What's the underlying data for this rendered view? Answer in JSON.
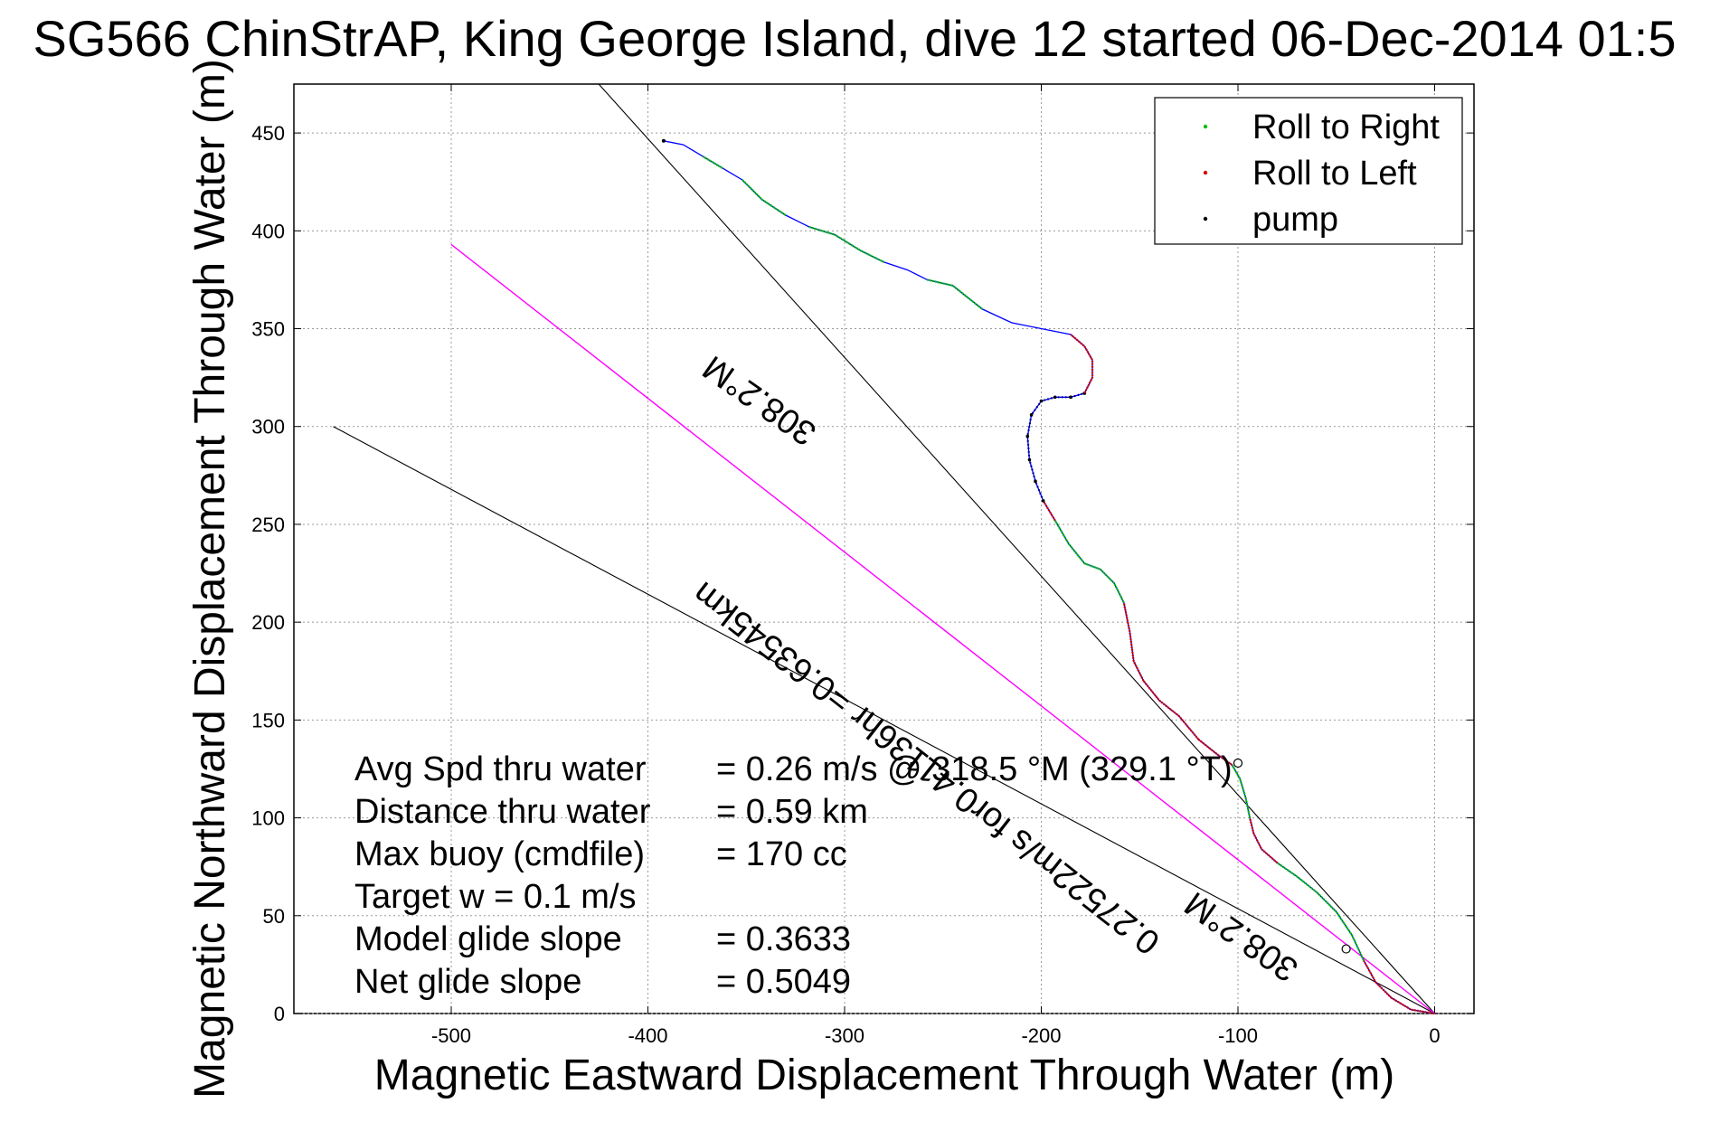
{
  "chart_data": {
    "type": "line",
    "title": "SG566 ChinStrAP, King George Island, dive 12 started 06-Dec-2014 01:5",
    "xlabel": "Magnetic Eastward Displacement Through Water (m)",
    "ylabel": "Magnetic Northward Displacement Through Water (m)",
    "xlim": [
      -580,
      20
    ],
    "ylim": [
      0,
      475
    ],
    "xticks": [
      -500,
      -400,
      -300,
      -200,
      -100,
      0
    ],
    "yticks": [
      0,
      50,
      100,
      150,
      200,
      250,
      300,
      350,
      400,
      450
    ],
    "grid": true,
    "legend_position": "top-right",
    "legend": [
      {
        "label": "Roll to Right",
        "color": "#00c000",
        "marker": "dot"
      },
      {
        "label": "Roll to Left",
        "color": "#d00000",
        "marker": "dot"
      },
      {
        "label": "pump",
        "color": "#000000",
        "marker": "dot"
      }
    ],
    "track": {
      "color": "#0000ff",
      "points": [
        [
          0,
          0
        ],
        [
          -12,
          2
        ],
        [
          -22,
          8
        ],
        [
          -30,
          16
        ],
        [
          -36,
          27
        ],
        [
          -42,
          40
        ],
        [
          -50,
          52
        ],
        [
          -60,
          62
        ],
        [
          -70,
          70
        ],
        [
          -80,
          77
        ],
        [
          -88,
          84
        ],
        [
          -92,
          92
        ],
        [
          -94,
          100
        ],
        [
          -96,
          110
        ],
        [
          -99,
          120
        ],
        [
          -103,
          127
        ],
        [
          -110,
          132
        ],
        [
          -120,
          140
        ],
        [
          -130,
          152
        ],
        [
          -140,
          160
        ],
        [
          -148,
          170
        ],
        [
          -153,
          180
        ],
        [
          -155,
          195
        ],
        [
          -158,
          210
        ],
        [
          -163,
          220
        ],
        [
          -170,
          227
        ],
        [
          -178,
          230
        ],
        [
          -186,
          240
        ],
        [
          -193,
          252
        ],
        [
          -199,
          262
        ],
        [
          -203,
          272
        ],
        [
          -206,
          283
        ],
        [
          -207,
          295
        ],
        [
          -205,
          306
        ],
        [
          -200,
          313
        ],
        [
          -193,
          315
        ],
        [
          -185,
          315
        ],
        [
          -178,
          317
        ],
        [
          -174,
          325
        ],
        [
          -174,
          334
        ],
        [
          -178,
          341
        ],
        [
          -185,
          347
        ],
        [
          -200,
          350
        ],
        [
          -215,
          353
        ],
        [
          -230,
          360
        ],
        [
          -245,
          372
        ],
        [
          -258,
          375
        ],
        [
          -268,
          380
        ],
        [
          -280,
          384
        ],
        [
          -292,
          390
        ],
        [
          -305,
          398
        ],
        [
          -318,
          402
        ],
        [
          -330,
          408
        ],
        [
          -342,
          416
        ],
        [
          -352,
          426
        ],
        [
          -362,
          432
        ],
        [
          -372,
          438
        ],
        [
          -382,
          444
        ],
        [
          -392,
          446
        ]
      ],
      "segments": [
        {
          "kind": "left",
          "from": 0,
          "to": 4
        },
        {
          "kind": "right",
          "from": 4,
          "to": 9
        },
        {
          "kind": "left",
          "from": 9,
          "to": 12
        },
        {
          "kind": "right",
          "from": 12,
          "to": 15
        },
        {
          "kind": "left",
          "from": 15,
          "to": 17
        },
        {
          "kind": "left",
          "from": 17,
          "to": 20
        },
        {
          "kind": "left",
          "from": 20,
          "to": 23
        },
        {
          "kind": "right",
          "from": 23,
          "to": 28
        },
        {
          "kind": "left",
          "from": 28,
          "to": 29
        },
        {
          "kind": "pump",
          "from": 29,
          "to": 36
        },
        {
          "kind": "pump",
          "from": 36,
          "to": 37
        },
        {
          "kind": "left",
          "from": 37,
          "to": 41
        },
        {
          "kind": "right",
          "from": 44,
          "to": 46
        },
        {
          "kind": "right",
          "from": 48,
          "to": 51
        },
        {
          "kind": "right",
          "from": 52,
          "to": 54
        },
        {
          "kind": "right",
          "from": 55,
          "to": 56
        }
      ]
    },
    "lines": [
      {
        "name": "envelope-upper",
        "color": "#000000",
        "points": [
          [
            0,
            0
          ],
          [
            -425,
            475
          ]
        ]
      },
      {
        "name": "envelope-lower",
        "color": "#000000",
        "points": [
          [
            0,
            0
          ],
          [
            -560,
            300
          ]
        ]
      },
      {
        "name": "heading-line",
        "color": "#ff00ff",
        "points": [
          [
            0,
            0
          ],
          [
            -500,
            393
          ]
        ]
      }
    ],
    "annotations": [
      {
        "text": "308.2°M",
        "x": -340,
        "y": 318,
        "rotate": 215
      },
      {
        "text": "0.27522m/s for0.41136hr =0.63545km",
        "x": -255,
        "y": 130,
        "rotate": 218
      },
      {
        "text": "308.2°M",
        "x": -95,
        "y": 44,
        "rotate": 215
      }
    ],
    "markers": [
      {
        "x": -100,
        "y": 128
      },
      {
        "x": -45,
        "y": 33
      }
    ],
    "stats": [
      {
        "label": "Avg Spd thru water",
        "value": "=  0.26 m/s @ 318.5 °M (329.1 °T)"
      },
      {
        "label": "Distance thru water",
        "value": "=  0.59 km"
      },
      {
        "label": "Max buoy (cmdfile)",
        "value": "= 170 cc"
      },
      {
        "label": "Target w    = 0.1 m/s",
        "value": ""
      },
      {
        "label": "Model glide slope",
        "value": "= 0.3633"
      },
      {
        "label": "Net glide slope",
        "value": "= 0.5049"
      }
    ]
  }
}
